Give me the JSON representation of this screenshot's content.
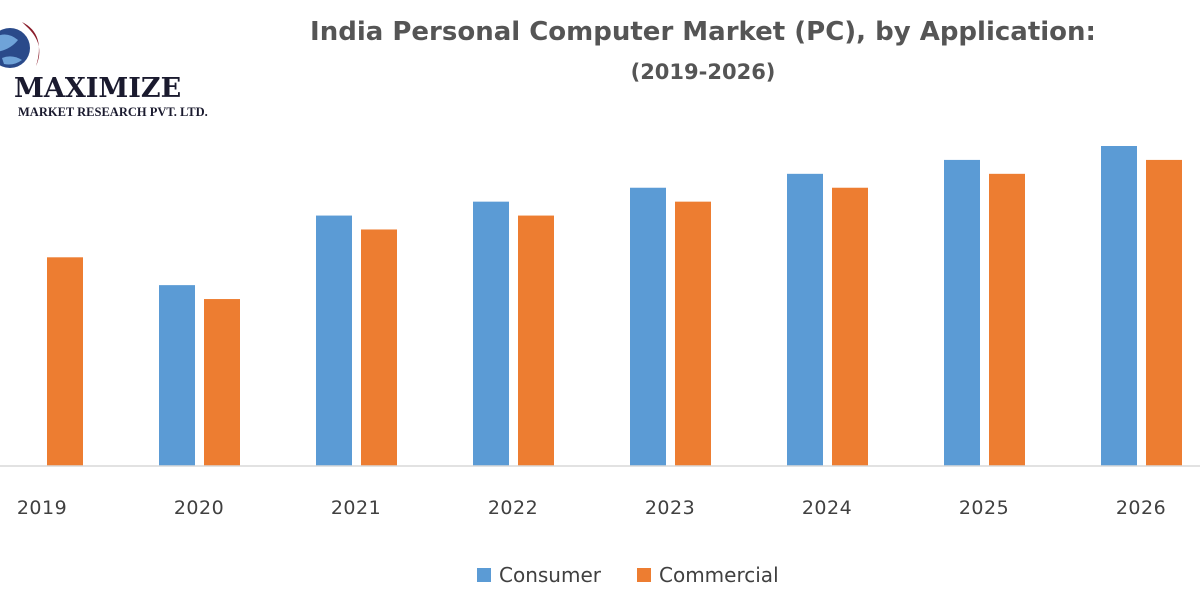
{
  "logo": {
    "name": "MAXIMIZE",
    "tagline": "MARKET RESEARCH PVT. LTD."
  },
  "colors": {
    "consumer": "#5b9bd5",
    "commercial": "#ed7d31",
    "axis": "#d9d9d9",
    "title": "#555555"
  },
  "chart_data": {
    "type": "bar",
    "title": "India Personal Computer Market (PC), by Application:",
    "subtitle": "(2019-2026)",
    "xlabel": "",
    "ylabel": "",
    "categories": [
      "2019",
      "2020",
      "2021",
      "2022",
      "2023",
      "2024",
      "2025",
      "2026"
    ],
    "series": [
      {
        "name": "Consumer",
        "values": [
          null,
          13,
          18,
          19,
          20,
          21,
          22,
          23
        ]
      },
      {
        "name": "Commercial",
        "values": [
          15,
          12,
          17,
          18,
          19,
          20,
          21,
          22
        ]
      }
    ],
    "ylim": [
      0,
      25
    ],
    "grid": false,
    "legend": "bottom-center"
  }
}
